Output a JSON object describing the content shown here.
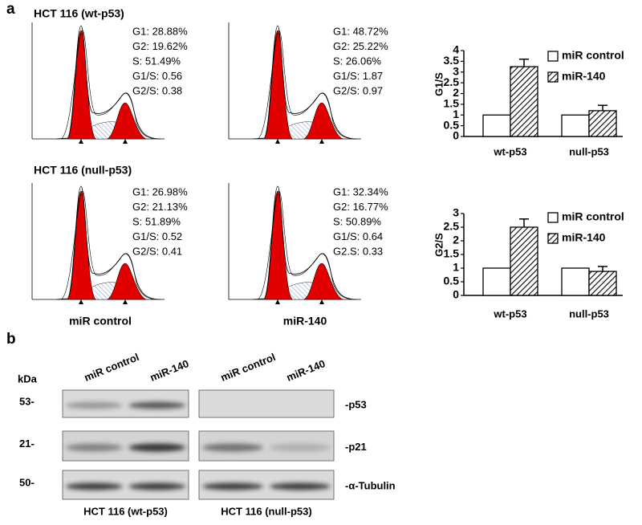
{
  "panel_a": {
    "label": "a",
    "histograms": {
      "rows": [
        {
          "title": "HCT 116 (wt-p53)",
          "panels": [
            {
              "stats": [
                "G1: 28.88%",
                "G2: 19.62%",
                "S: 51.49%",
                "G1/S: 0.56",
                "G2/S: 0.38"
              ]
            },
            {
              "stats": [
                "G1: 48.72%",
                "G2: 25.22%",
                "S: 26.06%",
                "G1/S: 1.87",
                "G2/S: 0.97"
              ]
            }
          ]
        },
        {
          "title": "HCT 116 (null-p53)",
          "panels": [
            {
              "stats": [
                "G1: 26.98%",
                "G2: 21.13%",
                "S: 51.89%",
                "G1/S: 0.52",
                "G2/S: 0.41"
              ]
            },
            {
              "stats": [
                "G1: 32.34%",
                "G2: 16.77%",
                "S: 50.89%",
                "G1/S: 0.64",
                "G2.S: 0.33"
              ]
            }
          ]
        }
      ],
      "column_labels": [
        "miR control",
        "miR-140"
      ]
    }
  },
  "chart_data": [
    {
      "type": "bar",
      "ylabel": "G1/S",
      "categories": [
        "wt-p53",
        "null-p53"
      ],
      "series": [
        {
          "name": "miR control",
          "color": "#ffffff",
          "hatch": false,
          "values": [
            1,
            1
          ]
        },
        {
          "name": "miR-140",
          "color": "#ffffff",
          "hatch": true,
          "values": [
            3.25,
            1.2
          ],
          "errors": [
            0.35,
            0.25
          ]
        }
      ],
      "ylim": [
        0,
        4
      ],
      "yticks": [
        0,
        0.5,
        1,
        1.5,
        2,
        2.5,
        3,
        3.5,
        4
      ]
    },
    {
      "type": "bar",
      "ylabel": "G2/S",
      "categories": [
        "wt-p53",
        "null-p53"
      ],
      "series": [
        {
          "name": "miR control",
          "color": "#ffffff",
          "hatch": false,
          "values": [
            1,
            1
          ]
        },
        {
          "name": "miR-140",
          "color": "#ffffff",
          "hatch": true,
          "values": [
            2.5,
            0.88
          ],
          "errors": [
            0.3,
            0.18
          ]
        }
      ],
      "ylim": [
        0,
        3
      ],
      "yticks": [
        0,
        0.5,
        1,
        1.5,
        2,
        2.5,
        3
      ]
    }
  ],
  "panel_b": {
    "label": "b",
    "unit": "kDa",
    "markers": [
      "53-",
      "21-",
      "50-"
    ],
    "proteins": [
      "-p53",
      "-p21",
      "-α-Tubulin"
    ],
    "groups": [
      {
        "lanes": [
          "miR control",
          "miR-140"
        ],
        "label": "HCT 116 (wt-p53)"
      },
      {
        "lanes": [
          "miR control",
          "miR-140"
        ],
        "label": "HCT 116 (null-p53)"
      }
    ]
  }
}
